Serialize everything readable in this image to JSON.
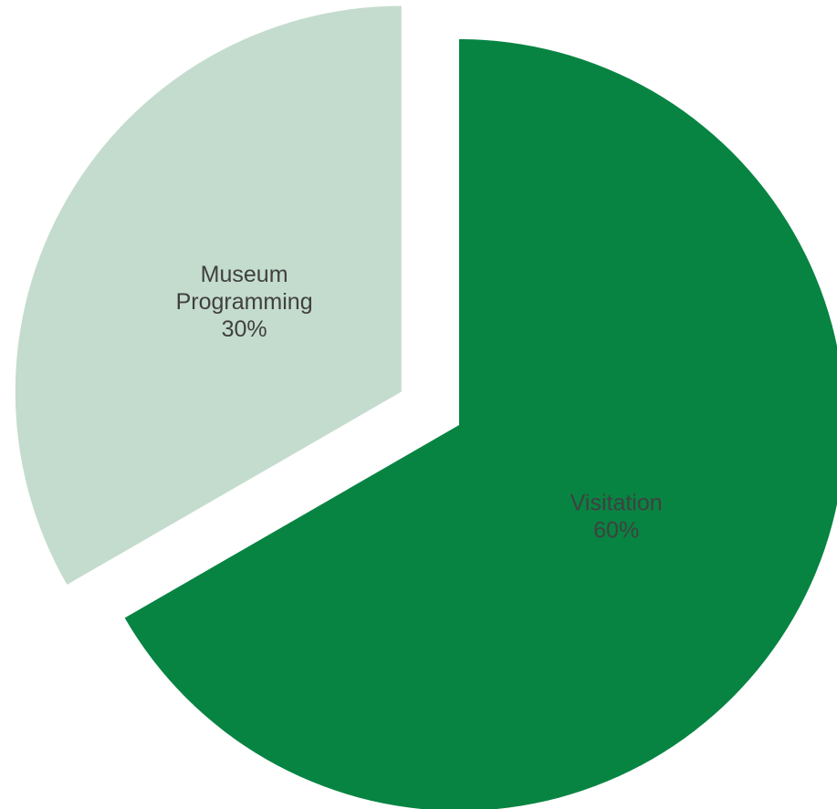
{
  "chart_data": {
    "type": "pie",
    "slices": [
      {
        "label_lines": [
          "Visitation"
        ],
        "value": 60,
        "value_label": "60%",
        "color": "#078442",
        "label_color": "#404040",
        "exploded": false
      },
      {
        "label_lines": [
          "Museum",
          "Programming"
        ],
        "value": 30,
        "value_label": "30%",
        "color": "#c4dccd",
        "label_color": "#404040",
        "exploded": true
      }
    ],
    "start": "12 o'clock",
    "direction": "clockwise",
    "legend": "none"
  }
}
